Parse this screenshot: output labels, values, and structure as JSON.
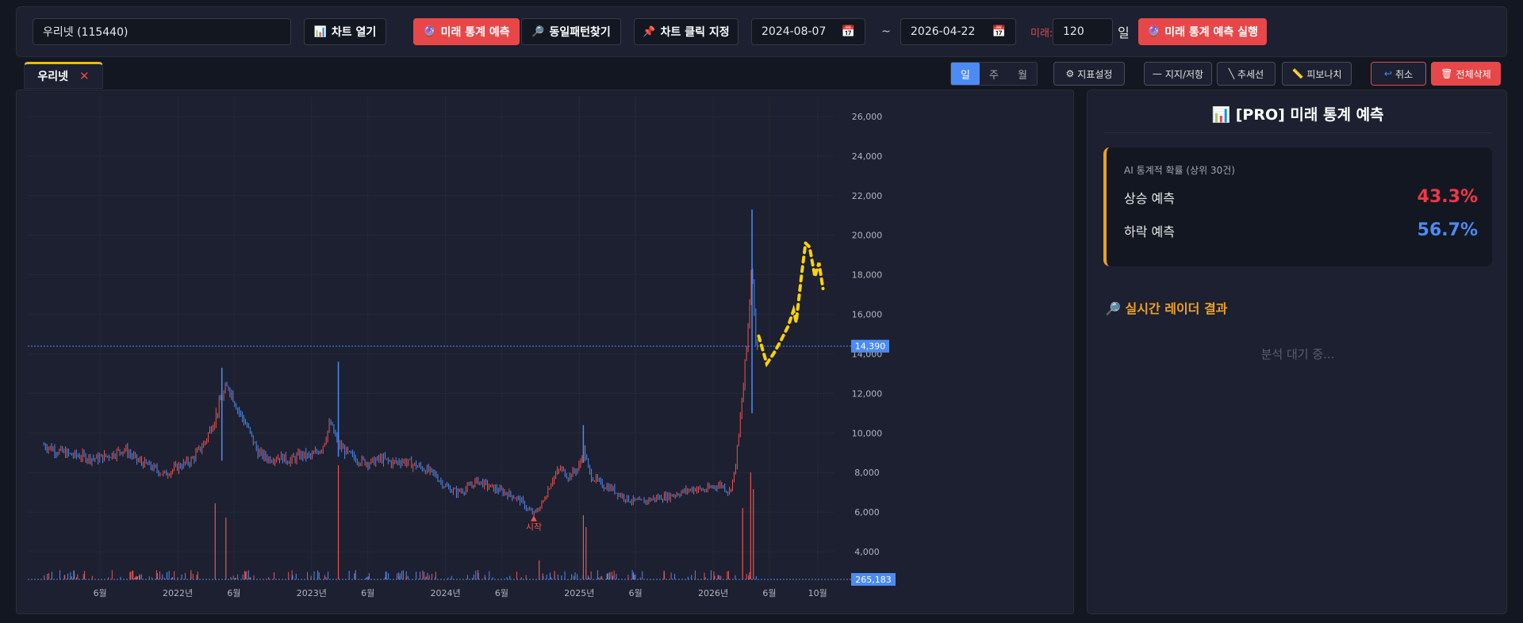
{
  "toolbar": {
    "stock_input": "우리넷 (115440)",
    "open_chart": "차트 열기",
    "open_chart_icon": "bar-chart-icon",
    "future_predict": "미래 통계 예측",
    "same_pattern": "동일패턴찾기",
    "click_point": "차트 클릭 지정",
    "start_date": "2024-08-07",
    "tilde": "~",
    "end_date": "2026-04-22",
    "future_label": "미래:",
    "future_days": "120",
    "day_unit": "일",
    "run_predict": "미래 통계 예측 실행"
  },
  "tabs": [
    {
      "label": "우리넷",
      "close": "✕"
    }
  ],
  "period": {
    "options": [
      "일",
      "주",
      "월"
    ],
    "active": "일"
  },
  "tools": {
    "indicator": "지표설정",
    "support": "지지/저항",
    "trendline": "추세선",
    "fibonacci": "피보나치",
    "undo": "취소",
    "delete_all": "전체삭제"
  },
  "chart_data": {
    "type": "candlestick",
    "y_ticks": [
      "26,000",
      "24,000",
      "22,000",
      "20,000",
      "18,000",
      "16,000",
      "14,000",
      "12,000",
      "10,000",
      "8,000",
      "6,000",
      "4,000"
    ],
    "x_ticks": [
      "6월",
      "2022년",
      "6월",
      "2023년",
      "6월",
      "2024년",
      "6월",
      "2025년",
      "6월",
      "2026년",
      "6월",
      "10월"
    ],
    "ylim": [
      2600,
      27000
    ],
    "current_price": 14390,
    "current_price_label": "14,390",
    "volume_label": "265,183",
    "start_marker": "시작",
    "colors": {
      "up": "#ef5350",
      "down": "#4c8bf5",
      "prediction": "#ffd200"
    },
    "grid": true,
    "price_path": [
      [
        2021.0,
        9400
      ],
      [
        2021.1,
        9100
      ],
      [
        2021.2,
        8900
      ],
      [
        2021.3,
        8800
      ],
      [
        2021.4,
        8700
      ],
      [
        2021.5,
        8900
      ],
      [
        2021.6,
        9200
      ],
      [
        2021.7,
        8600
      ],
      [
        2021.8,
        8300
      ],
      [
        2021.9,
        7900
      ],
      [
        2022.0,
        8300
      ],
      [
        2022.1,
        8600
      ],
      [
        2022.2,
        9500
      ],
      [
        2022.28,
        10800
      ],
      [
        2022.33,
        11800
      ],
      [
        2022.38,
        12400
      ],
      [
        2022.45,
        11200
      ],
      [
        2022.52,
        10300
      ],
      [
        2022.6,
        9000
      ],
      [
        2022.68,
        8700
      ],
      [
        2022.76,
        8800
      ],
      [
        2022.84,
        8600
      ],
      [
        2022.92,
        8900
      ],
      [
        2023.0,
        8800
      ],
      [
        2023.08,
        9300
      ],
      [
        2023.14,
        10500
      ],
      [
        2023.2,
        9400
      ],
      [
        2023.28,
        8900
      ],
      [
        2023.36,
        8600
      ],
      [
        2023.44,
        8500
      ],
      [
        2023.52,
        8700
      ],
      [
        2023.6,
        8500
      ],
      [
        2023.68,
        8600
      ],
      [
        2023.76,
        8400
      ],
      [
        2023.84,
        8200
      ],
      [
        2023.92,
        7900
      ],
      [
        2024.0,
        7300
      ],
      [
        2024.08,
        7000
      ],
      [
        2024.16,
        7200
      ],
      [
        2024.24,
        7600
      ],
      [
        2024.32,
        7300
      ],
      [
        2024.4,
        7100
      ],
      [
        2024.48,
        6900
      ],
      [
        2024.56,
        6600
      ],
      [
        2024.62,
        6100
      ],
      [
        2024.66,
        5900
      ],
      [
        2024.72,
        6400
      ],
      [
        2024.8,
        7700
      ],
      [
        2024.86,
        8200
      ],
      [
        2024.92,
        7800
      ],
      [
        2025.0,
        8300
      ],
      [
        2025.03,
        9200
      ],
      [
        2025.08,
        7900
      ],
      [
        2025.16,
        7400
      ],
      [
        2025.24,
        7200
      ],
      [
        2025.3,
        6900
      ],
      [
        2025.38,
        6600
      ],
      [
        2025.46,
        6500
      ],
      [
        2025.56,
        6700
      ],
      [
        2025.66,
        6800
      ],
      [
        2025.76,
        7000
      ],
      [
        2025.86,
        7200
      ],
      [
        2025.94,
        7100
      ],
      [
        2026.0,
        7300
      ],
      [
        2026.06,
        7400
      ],
      [
        2026.12,
        7000
      ],
      [
        2026.16,
        8000
      ],
      [
        2026.19,
        9800
      ],
      [
        2026.22,
        12000
      ],
      [
        2026.25,
        14400
      ],
      [
        2026.27,
        16500
      ],
      [
        2026.29,
        19000
      ],
      [
        2026.31,
        15500
      ],
      [
        2026.33,
        14390
      ]
    ],
    "spikes": [
      [
        2022.33,
        13300,
        8600
      ],
      [
        2023.2,
        13600,
        8800
      ],
      [
        2025.03,
        10400,
        8500
      ],
      [
        2026.29,
        21300,
        11000
      ]
    ],
    "prediction_path": [
      [
        2026.34,
        14900
      ],
      [
        2026.37,
        14200
      ],
      [
        2026.4,
        13500
      ],
      [
        2026.45,
        14000
      ],
      [
        2026.5,
        14600
      ],
      [
        2026.56,
        15400
      ],
      [
        2026.6,
        16200
      ],
      [
        2026.62,
        15600
      ],
      [
        2026.66,
        18000
      ],
      [
        2026.69,
        19600
      ],
      [
        2026.72,
        19400
      ],
      [
        2026.76,
        17900
      ],
      [
        2026.79,
        18600
      ],
      [
        2026.82,
        17300
      ]
    ],
    "volume_spikes": [
      [
        2022.28,
        0.32
      ],
      [
        2022.36,
        0.26
      ],
      [
        2023.2,
        0.48
      ],
      [
        2024.7,
        0.08
      ],
      [
        2025.03,
        0.27
      ],
      [
        2025.05,
        0.22
      ],
      [
        2026.22,
        0.3
      ],
      [
        2026.28,
        0.45
      ],
      [
        2026.3,
        0.38
      ]
    ]
  },
  "side": {
    "title_icon": "bar-chart-icon",
    "title": "[PRO] 미래 통계 예측",
    "prob_head": "AI 통계적 확률 (상위 30건)",
    "up_label": "상승 예측",
    "up_value": "43.3%",
    "down_label": "하락 예측",
    "down_value": "56.7%",
    "radar_title": "실시간 레이더 결과",
    "radar_wait": "분석 대기 중..."
  }
}
